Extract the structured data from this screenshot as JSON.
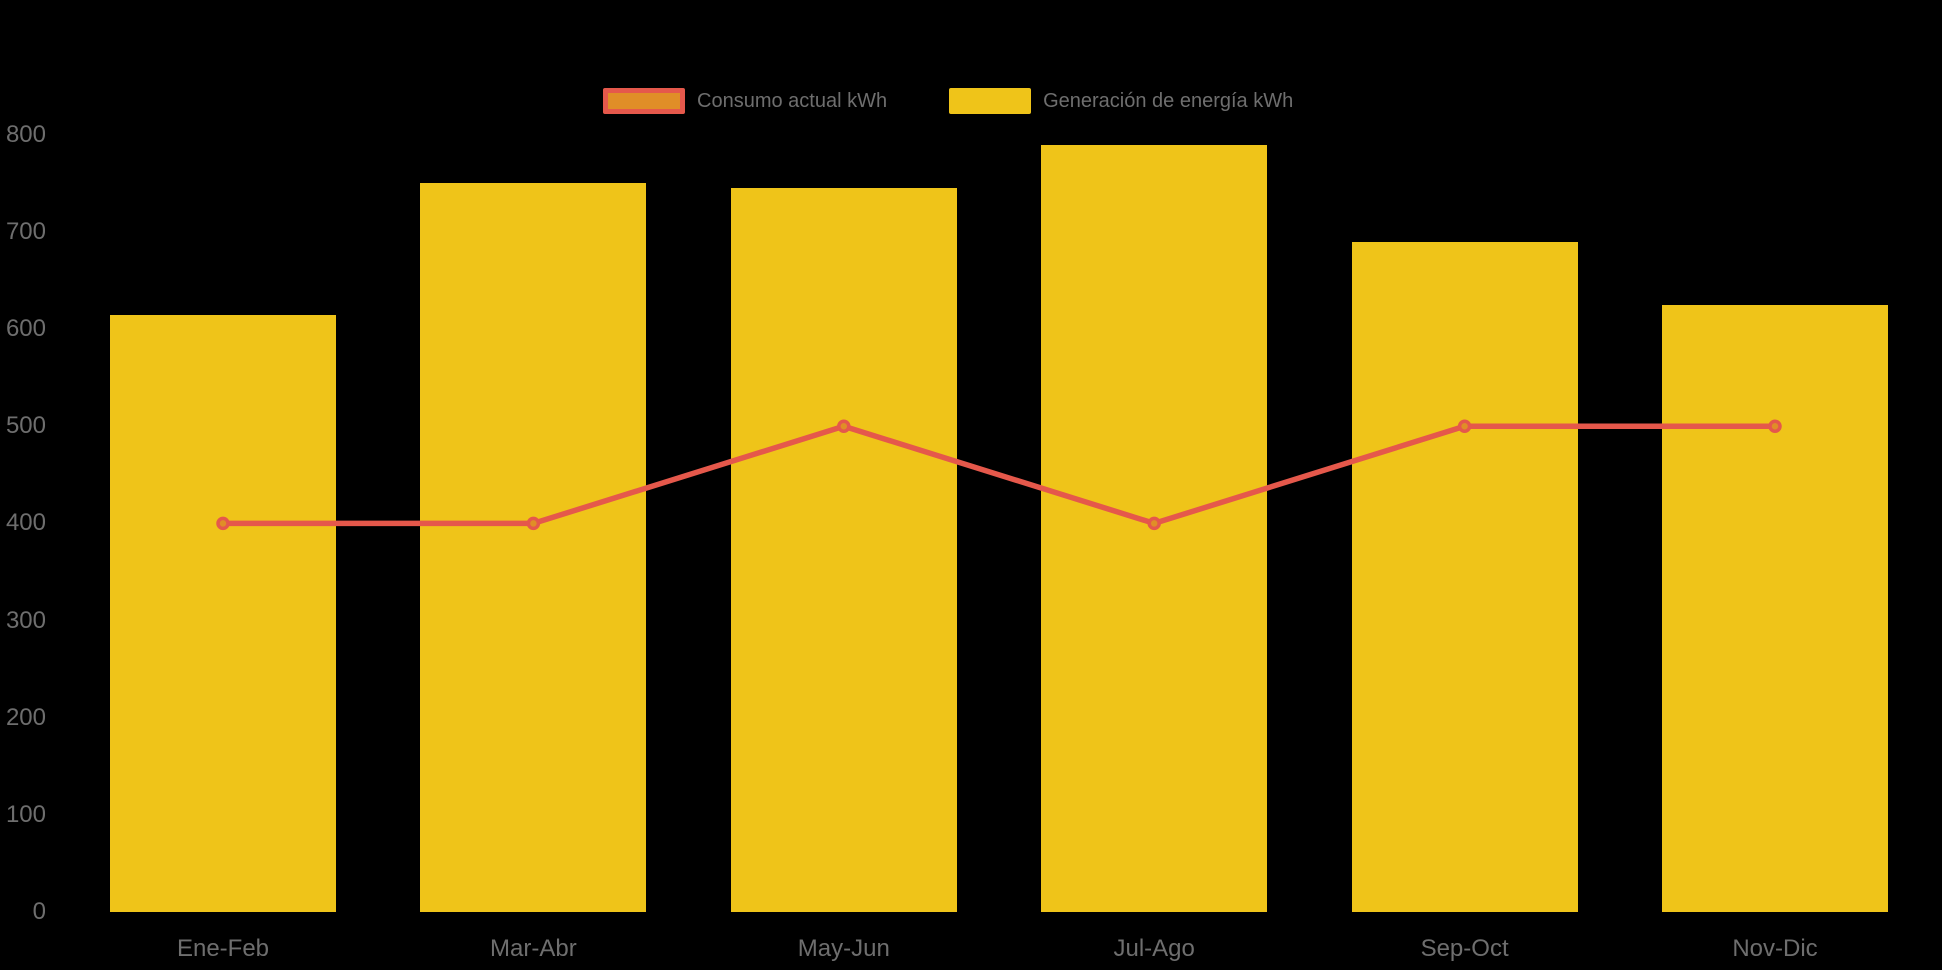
{
  "colors": {
    "background": "#000000",
    "bar_yellow": "#EFC419",
    "line_red": "#E5584B",
    "point_orange": "#E08E27",
    "label_gray": "#6E6E6E"
  },
  "legend": {
    "items": [
      {
        "label": "Consumo actual kWh",
        "series_type": "line"
      },
      {
        "label": "Generación de energía kWh",
        "series_type": "bar"
      }
    ]
  },
  "chart_data": {
    "type": "bar",
    "subtype": "bar-line-combo",
    "title": "",
    "xlabel": "",
    "ylabel": "",
    "categories": [
      "Ene-Feb",
      "Mar-Abr",
      "May-Jun",
      "Jul-Ago",
      "Sep-Oct",
      "Nov-Dic"
    ],
    "series": [
      {
        "name": "Generación de energía kWh",
        "type": "bar",
        "color": "#EFC419",
        "values": [
          615,
          750,
          745,
          790,
          690,
          625
        ]
      },
      {
        "name": "Consumo actual kWh",
        "type": "line",
        "line_color": "#E5584B",
        "point_fill": "#E08E27",
        "values": [
          400,
          400,
          500,
          400,
          500,
          500
        ]
      }
    ],
    "y_axis": {
      "min": 0,
      "max": 800,
      "tick_step": 100,
      "ticks": [
        0,
        100,
        200,
        300,
        400,
        500,
        600,
        700,
        800
      ]
    },
    "grid": false,
    "legend_position": "top-center",
    "background": "black"
  }
}
